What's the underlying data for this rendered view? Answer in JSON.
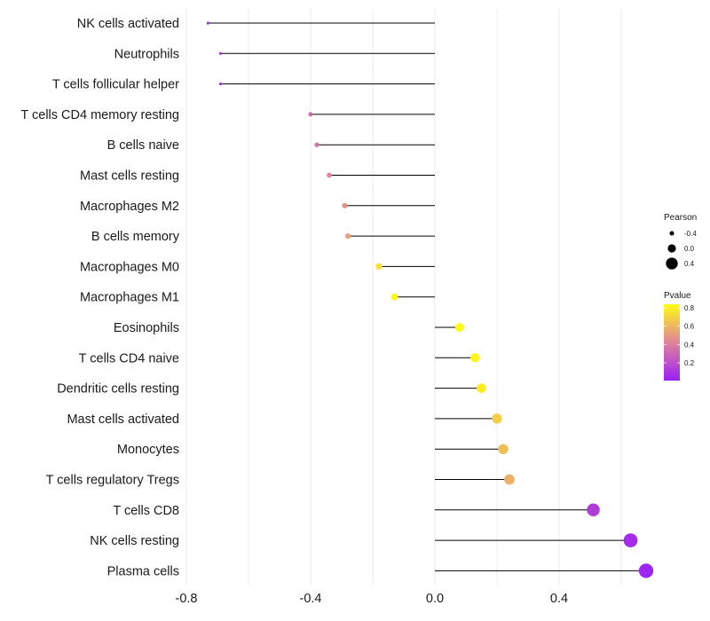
{
  "chart_data": {
    "type": "lollipop",
    "title": "",
    "xlabel": "",
    "ylabel": "",
    "xlim": [
      -0.8,
      0.68
    ],
    "x_ticks": [
      {
        "value": -0.8,
        "label": "-0.8"
      },
      {
        "value": -0.4,
        "label": "-0.4"
      },
      {
        "value": 0.0,
        "label": "0.0"
      },
      {
        "value": 0.4,
        "label": "0.4"
      }
    ],
    "grid": true,
    "categories": [
      "NK cells activated",
      "Neutrophils",
      "T cells follicular helper",
      "T cells CD4 memory resting",
      "B cells naive",
      "Mast cells resting",
      "Macrophages M2",
      "B cells memory",
      "Macrophages M0",
      "Macrophages M1",
      "Eosinophils",
      "T cells CD4 naive",
      "Dendritic cells resting",
      "Mast cells activated",
      "Monocytes",
      "T cells regulatory  Tregs",
      "T cells CD8",
      "NK cells resting",
      "Plasma cells"
    ],
    "pearson": [
      -0.73,
      -0.69,
      -0.69,
      -0.4,
      -0.38,
      -0.34,
      -0.29,
      -0.28,
      -0.18,
      -0.13,
      0.08,
      0.13,
      0.15,
      0.2,
      0.22,
      0.24,
      0.51,
      0.63,
      0.68
    ],
    "pvalue": [
      0.05,
      0.05,
      0.05,
      0.3,
      0.33,
      0.4,
      0.45,
      0.5,
      0.7,
      0.78,
      0.85,
      0.78,
      0.75,
      0.65,
      0.6,
      0.55,
      0.12,
      0.05,
      0.02
    ],
    "legend_size": {
      "title": "Pearson",
      "entries": [
        {
          "value": -0.4,
          "label": "-0.4"
        },
        {
          "value": 0.0,
          "label": "0.0"
        },
        {
          "value": 0.4,
          "label": "0.4"
        }
      ]
    },
    "legend_color": {
      "title": "Pvalue",
      "range": [
        0.0,
        0.8
      ],
      "ticks": [
        {
          "value": 0.8,
          "label": "0.8"
        },
        {
          "value": 0.6,
          "label": "0.6"
        },
        {
          "value": 0.4,
          "label": "0.4"
        },
        {
          "value": 0.2,
          "label": "0.2"
        }
      ],
      "low_color": "#9b1ff5",
      "mid_color": "#e0849a",
      "high_color": "#fffb14"
    },
    "stem_color": "#000000",
    "grid_color": "#ebebeb",
    "legend_position": "right"
  }
}
